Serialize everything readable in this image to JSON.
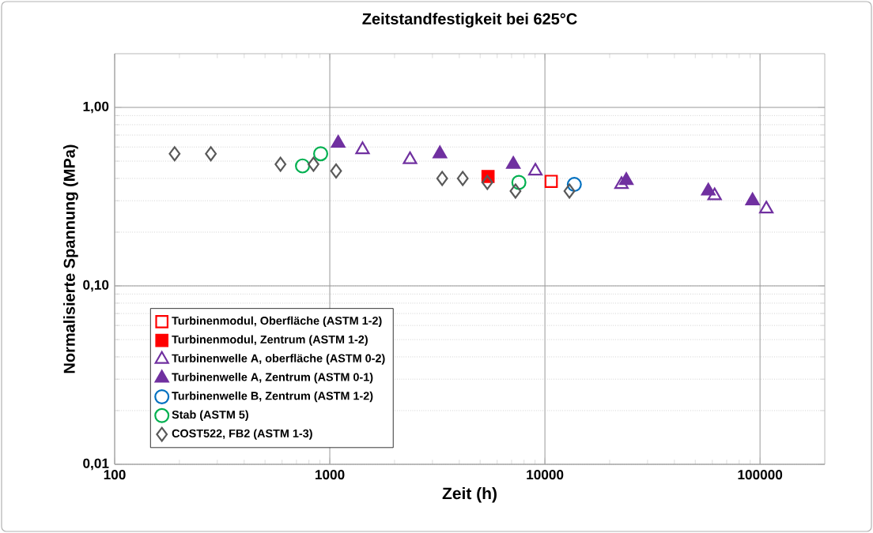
{
  "chart_data": {
    "type": "scatter",
    "title": "Zeitstandfestigkeit bei 625°C",
    "xlabel": "Zeit (h)",
    "ylabel": "Normalisierte Spannung (MPa)",
    "log": "xy",
    "xlim": [
      100,
      200000
    ],
    "ylim": [
      0.01,
      2
    ],
    "xticks": [
      100,
      1000,
      10000,
      100000
    ],
    "yticks": [
      {
        "value": 0.01,
        "label": "0,01"
      },
      {
        "value": 0.1,
        "label": "0,10"
      },
      {
        "value": 1,
        "label": "1,00"
      }
    ],
    "grid": true,
    "legend": "bottom left",
    "series": [
      {
        "name": "Turbinenmodul, Oberfläche (ASTM 1-2)",
        "color": "#ff0000",
        "marker": "square",
        "x": [
          10700
        ],
        "values": [
          0.385
        ]
      },
      {
        "name": "Turbinenmodul, Zentrum (ASTM 1-2)",
        "color": "#ff0000",
        "marker": "square",
        "x": [
          5440
        ],
        "values": [
          0.41
        ]
      },
      {
        "name": "Turbinenwelle A, oberfläche (ASTM 0-2)",
        "color": "#7030a0",
        "marker": "triangle",
        "x": [
          1420,
          2360,
          9030,
          22700,
          61500,
          107000
        ],
        "values": [
          0.58,
          0.51,
          0.44,
          0.37,
          0.32,
          0.27
        ]
      },
      {
        "name": "Turbinenwelle A, Zentrum (ASTM 0-1)",
        "color": "#7030a0",
        "marker": "triangle",
        "x": [
          1094,
          3250,
          7130,
          23900,
          57500,
          92300
        ],
        "values": [
          0.63,
          0.55,
          0.48,
          0.39,
          0.34,
          0.3
        ]
      },
      {
        "name": "Turbinenwelle B, Zentrum (ASTM 1-2)",
        "color": "#0070c0",
        "marker": "circle",
        "x": [
          13700
        ],
        "values": [
          0.37
        ]
      },
      {
        "name": "Stab (ASTM 5)",
        "color": "#00b050",
        "marker": "circle",
        "x": [
          747,
          907,
          7570
        ],
        "values": [
          0.47,
          0.55,
          0.38
        ]
      },
      {
        "name": "COST522, FB2 (ASTM 1-3)",
        "color": "#595959",
        "marker": "diamond",
        "x": [
          190,
          280,
          590,
          840,
          1070,
          3330,
          4150,
          5400,
          7300,
          13000
        ],
        "values": [
          0.55,
          0.55,
          0.48,
          0.48,
          0.44,
          0.4,
          0.4,
          0.38,
          0.34,
          0.34
        ]
      }
    ]
  }
}
